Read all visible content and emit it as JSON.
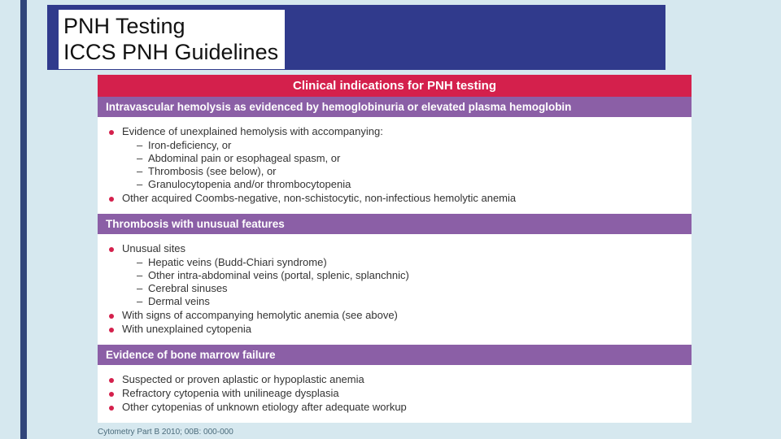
{
  "colors": {
    "page_bg": "#d6e8ef",
    "sidebar_stripe": "#30457a",
    "title_box_bg": "#303a8c",
    "title_text_bg": "#ffffff",
    "title_text_color": "#111111",
    "header_red": "#d4204c",
    "header_purple": "#8b5fa6",
    "bullet_red": "#d4204c",
    "body_text": "#333333"
  },
  "title": {
    "line1": "PNH Testing",
    "line2": "ICCS PNH Guidelines"
  },
  "main_header": "Clinical indications for PNH testing",
  "sections": [
    {
      "header": "Intravascular hemolysis as evidenced by hemoglobinuria or elevated plasma hemoglobin",
      "bullets": [
        {
          "text": "Evidence of unexplained hemolysis with accompanying:",
          "sub": [
            "Iron-deficiency, or",
            "Abdominal pain or esophageal spasm, or",
            "Thrombosis (see below), or",
            "Granulocytopenia and/or thrombocytopenia"
          ]
        },
        {
          "text": "Other acquired Coombs-negative, non-schistocytic, non-infectious hemolytic anemia",
          "sub": []
        }
      ]
    },
    {
      "header": "Thrombosis with unusual features",
      "bullets": [
        {
          "text": "Unusual sites",
          "sub": [
            "Hepatic veins (Budd-Chiari syndrome)",
            "Other intra-abdominal veins (portal, splenic, splanchnic)",
            "Cerebral sinuses",
            "Dermal veins"
          ]
        },
        {
          "text": "With signs of accompanying hemolytic anemia (see above)",
          "sub": []
        },
        {
          "text": "With unexplained cytopenia",
          "sub": []
        }
      ]
    },
    {
      "header": "Evidence of bone marrow failure",
      "bullets": [
        {
          "text": "Suspected or proven aplastic or hypoplastic anemia",
          "sub": []
        },
        {
          "text": "Refractory cytopenia with unilineage dysplasia",
          "sub": []
        },
        {
          "text": "Other cytopenias of unknown etiology after adequate workup",
          "sub": []
        }
      ]
    }
  ],
  "citation": "Cytometry Part B 2010; 00B: 000-000"
}
